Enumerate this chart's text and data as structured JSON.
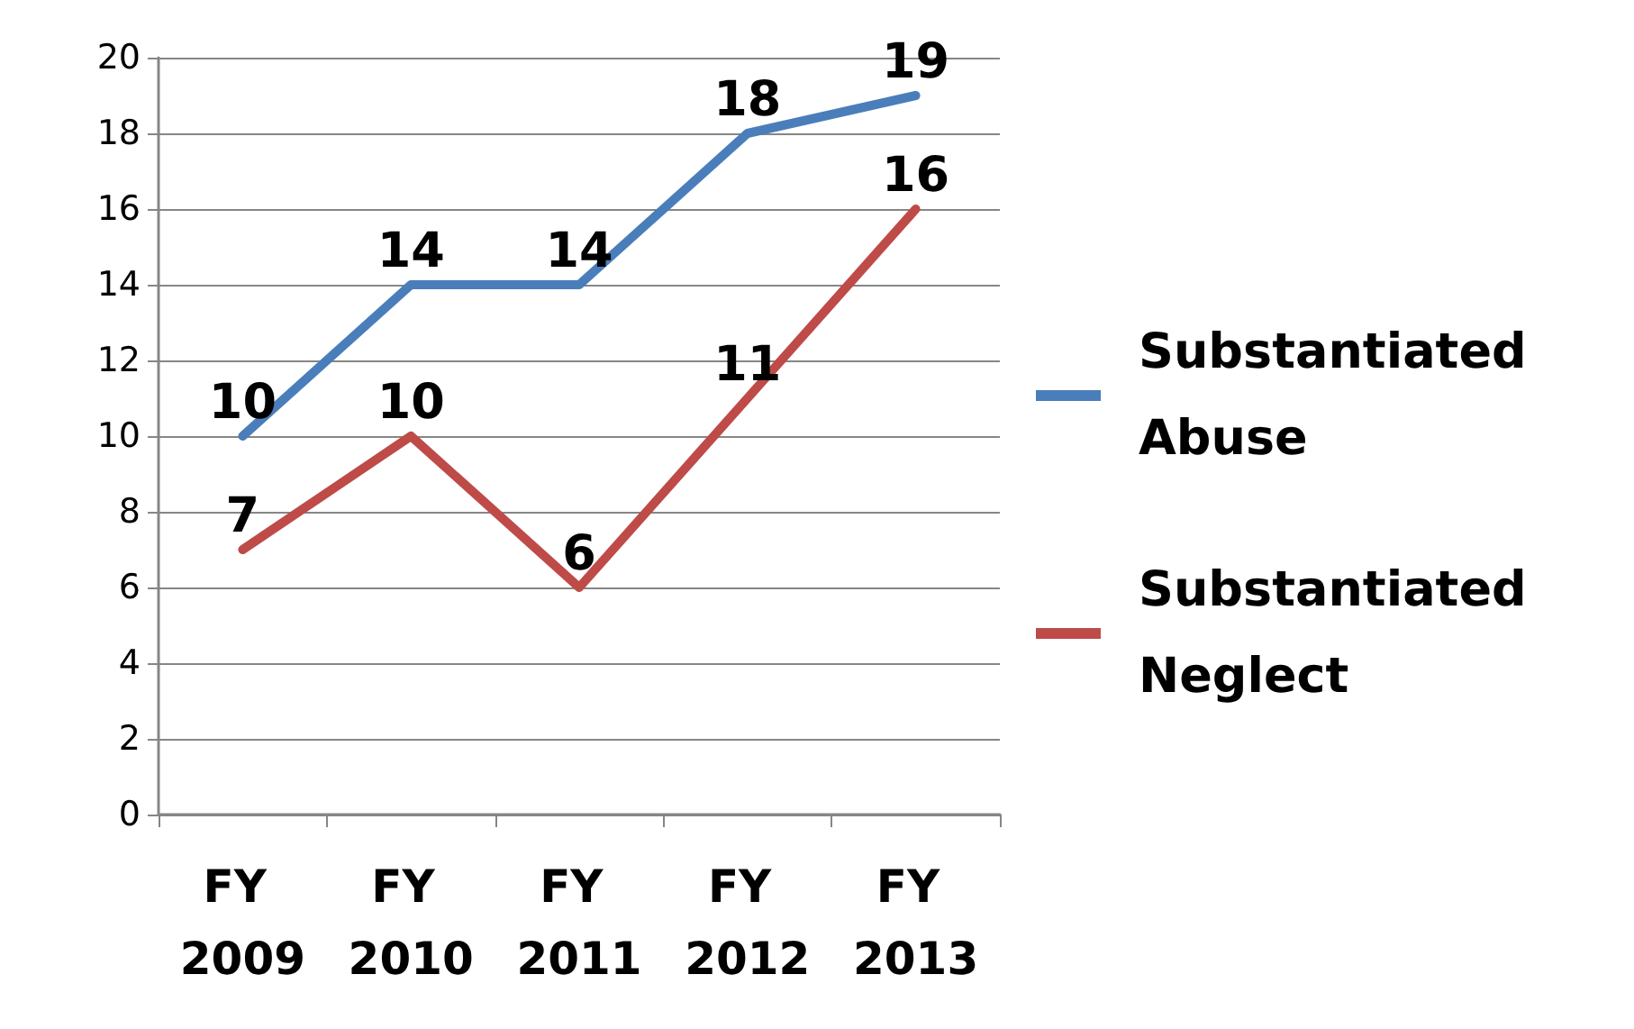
{
  "chart_data": {
    "type": "line",
    "categories": [
      "FY 2009",
      "FY 2010",
      "FY 2011",
      "FY 2012",
      "FY 2013"
    ],
    "series": [
      {
        "name": "Substantiated Abuse",
        "color": "#4a7ebb",
        "values": [
          10,
          14,
          14,
          18,
          19
        ]
      },
      {
        "name": "Substantiated Neglect",
        "color": "#be4b48",
        "values": [
          7,
          10,
          6,
          11,
          16
        ]
      }
    ],
    "ylim": [
      0,
      20
    ],
    "yticks": [
      0,
      2,
      4,
      6,
      8,
      10,
      12,
      14,
      16,
      18,
      20
    ],
    "grid": "y",
    "legend": "right",
    "marker": "none",
    "data_labels": true
  }
}
